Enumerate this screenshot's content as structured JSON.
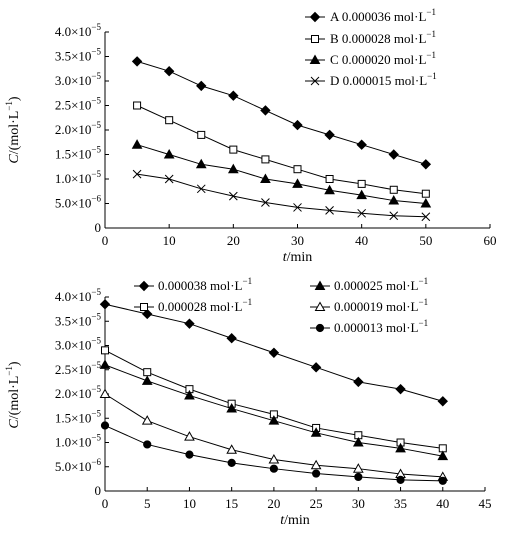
{
  "chart_data": [
    {
      "type": "line",
      "xlabel_var": "t",
      "xlabel_unit": "/min",
      "ylabel_var": "C",
      "ylabel_unit": "/(mol·L",
      "ylabel_sup": "−1",
      "ylabel_close": ")",
      "xlim": [
        0,
        60
      ],
      "ylim": [
        0,
        4e-05
      ],
      "xticks": [
        0,
        10,
        20,
        30,
        40,
        50,
        60
      ],
      "yticks": [
        {
          "v": 0,
          "m": "0",
          "e": ""
        },
        {
          "v": 5e-06,
          "m": "5.0×10",
          "e": "−6"
        },
        {
          "v": 1e-05,
          "m": "1.0×10",
          "e": "−5"
        },
        {
          "v": 1.5e-05,
          "m": "1.5×10",
          "e": "−5"
        },
        {
          "v": 2e-05,
          "m": "2.0×10",
          "e": "−5"
        },
        {
          "v": 2.5e-05,
          "m": "2.5×10",
          "e": "−5"
        },
        {
          "v": 3e-05,
          "m": "3.0×10",
          "e": "−5"
        },
        {
          "v": 3.5e-05,
          "m": "3.5×10",
          "e": "−5"
        },
        {
          "v": 4e-05,
          "m": "4.0×10",
          "e": "−5"
        }
      ],
      "legend_position": "top-right",
      "grid": false,
      "x": [
        5,
        10,
        15,
        20,
        25,
        30,
        35,
        40,
        45,
        50
      ],
      "series": [
        {
          "name": "A 0.000036 mol·L",
          "sup": "−1",
          "marker": "diamond",
          "values": [
            3.4e-05,
            3.2e-05,
            2.9e-05,
            2.7e-05,
            2.4e-05,
            2.1e-05,
            1.9e-05,
            1.7e-05,
            1.5e-05,
            1.3e-05
          ]
        },
        {
          "name": "B 0.000028 mol·L",
          "sup": "−1",
          "marker": "square",
          "values": [
            2.5e-05,
            2.2e-05,
            1.9e-05,
            1.6e-05,
            1.4e-05,
            1.2e-05,
            1e-05,
            9e-06,
            7.8e-06,
            7e-06
          ]
        },
        {
          "name": "C 0.000020 mol·L",
          "sup": "−1",
          "marker": "triangle",
          "values": [
            1.7e-05,
            1.5e-05,
            1.3e-05,
            1.2e-05,
            1e-05,
            9e-06,
            7.7e-06,
            6.7e-06,
            5.6e-06,
            5e-06
          ]
        },
        {
          "name": "D 0.000015 mol·L",
          "sup": "−1",
          "marker": "x",
          "values": [
            1.1e-05,
            1e-05,
            8e-06,
            6.5e-06,
            5.2e-06,
            4.2e-06,
            3.6e-06,
            3e-06,
            2.5e-06,
            2.3e-06
          ]
        }
      ]
    },
    {
      "type": "line",
      "xlabel_var": "t",
      "xlabel_unit": "/min",
      "ylabel_var": "C",
      "ylabel_unit": "/(mol·L",
      "ylabel_sup": "−1",
      "ylabel_close": ")",
      "xlim": [
        0,
        45
      ],
      "ylim": [
        0,
        4e-05
      ],
      "xticks": [
        0,
        5,
        10,
        15,
        20,
        25,
        30,
        35,
        40,
        45
      ],
      "yticks": [
        {
          "v": 0,
          "m": "0",
          "e": ""
        },
        {
          "v": 5e-06,
          "m": "5.0×10",
          "e": "−6"
        },
        {
          "v": 1e-05,
          "m": "1.0×10",
          "e": "−5"
        },
        {
          "v": 1.5e-05,
          "m": "1.5×10",
          "e": "−5"
        },
        {
          "v": 2e-05,
          "m": "2.0×10",
          "e": "−5"
        },
        {
          "v": 2.5e-05,
          "m": "2.5×10",
          "e": "−5"
        },
        {
          "v": 3e-05,
          "m": "3.0×10",
          "e": "−5"
        },
        {
          "v": 3.5e-05,
          "m": "3.5×10",
          "e": "−5"
        },
        {
          "v": 4e-05,
          "m": "4.0×10",
          "e": "−5"
        }
      ],
      "legend_position": "top",
      "grid": false,
      "x": [
        0,
        5,
        10,
        15,
        20,
        25,
        30,
        35,
        40
      ],
      "series": [
        {
          "name": "0.000038 mol·L",
          "sup": "−1",
          "marker": "diamond",
          "values": [
            3.85e-05,
            3.65e-05,
            3.45e-05,
            3.15e-05,
            2.85e-05,
            2.55e-05,
            2.25e-05,
            2.1e-05,
            1.85e-05
          ]
        },
        {
          "name": "0.000028 mol·L",
          "sup": "−1",
          "marker": "square",
          "values": [
            2.9e-05,
            2.45e-05,
            2.1e-05,
            1.8e-05,
            1.58e-05,
            1.3e-05,
            1.15e-05,
            1e-05,
            8.8e-06
          ]
        },
        {
          "name": "0.000025 mol·L",
          "sup": "−1",
          "marker": "triangle",
          "values": [
            2.6e-05,
            2.27e-05,
            1.97e-05,
            1.7e-05,
            1.45e-05,
            1.2e-05,
            1e-05,
            8.8e-06,
            7.2e-06
          ]
        },
        {
          "name": "0.000019 mol·L",
          "sup": "−1",
          "marker": "triangle-open",
          "values": [
            2e-05,
            1.45e-05,
            1.12e-05,
            8.5e-06,
            6.5e-06,
            5.3e-06,
            4.6e-06,
            3.5e-06,
            2.9e-06
          ]
        },
        {
          "name": "0.000013 mol·L",
          "sup": "−1",
          "marker": "circle",
          "values": [
            1.35e-05,
            9.6e-06,
            7.5e-06,
            5.8e-06,
            4.6e-06,
            3.6e-06,
            2.9e-06,
            2.3e-06,
            2.1e-06
          ]
        }
      ]
    }
  ]
}
